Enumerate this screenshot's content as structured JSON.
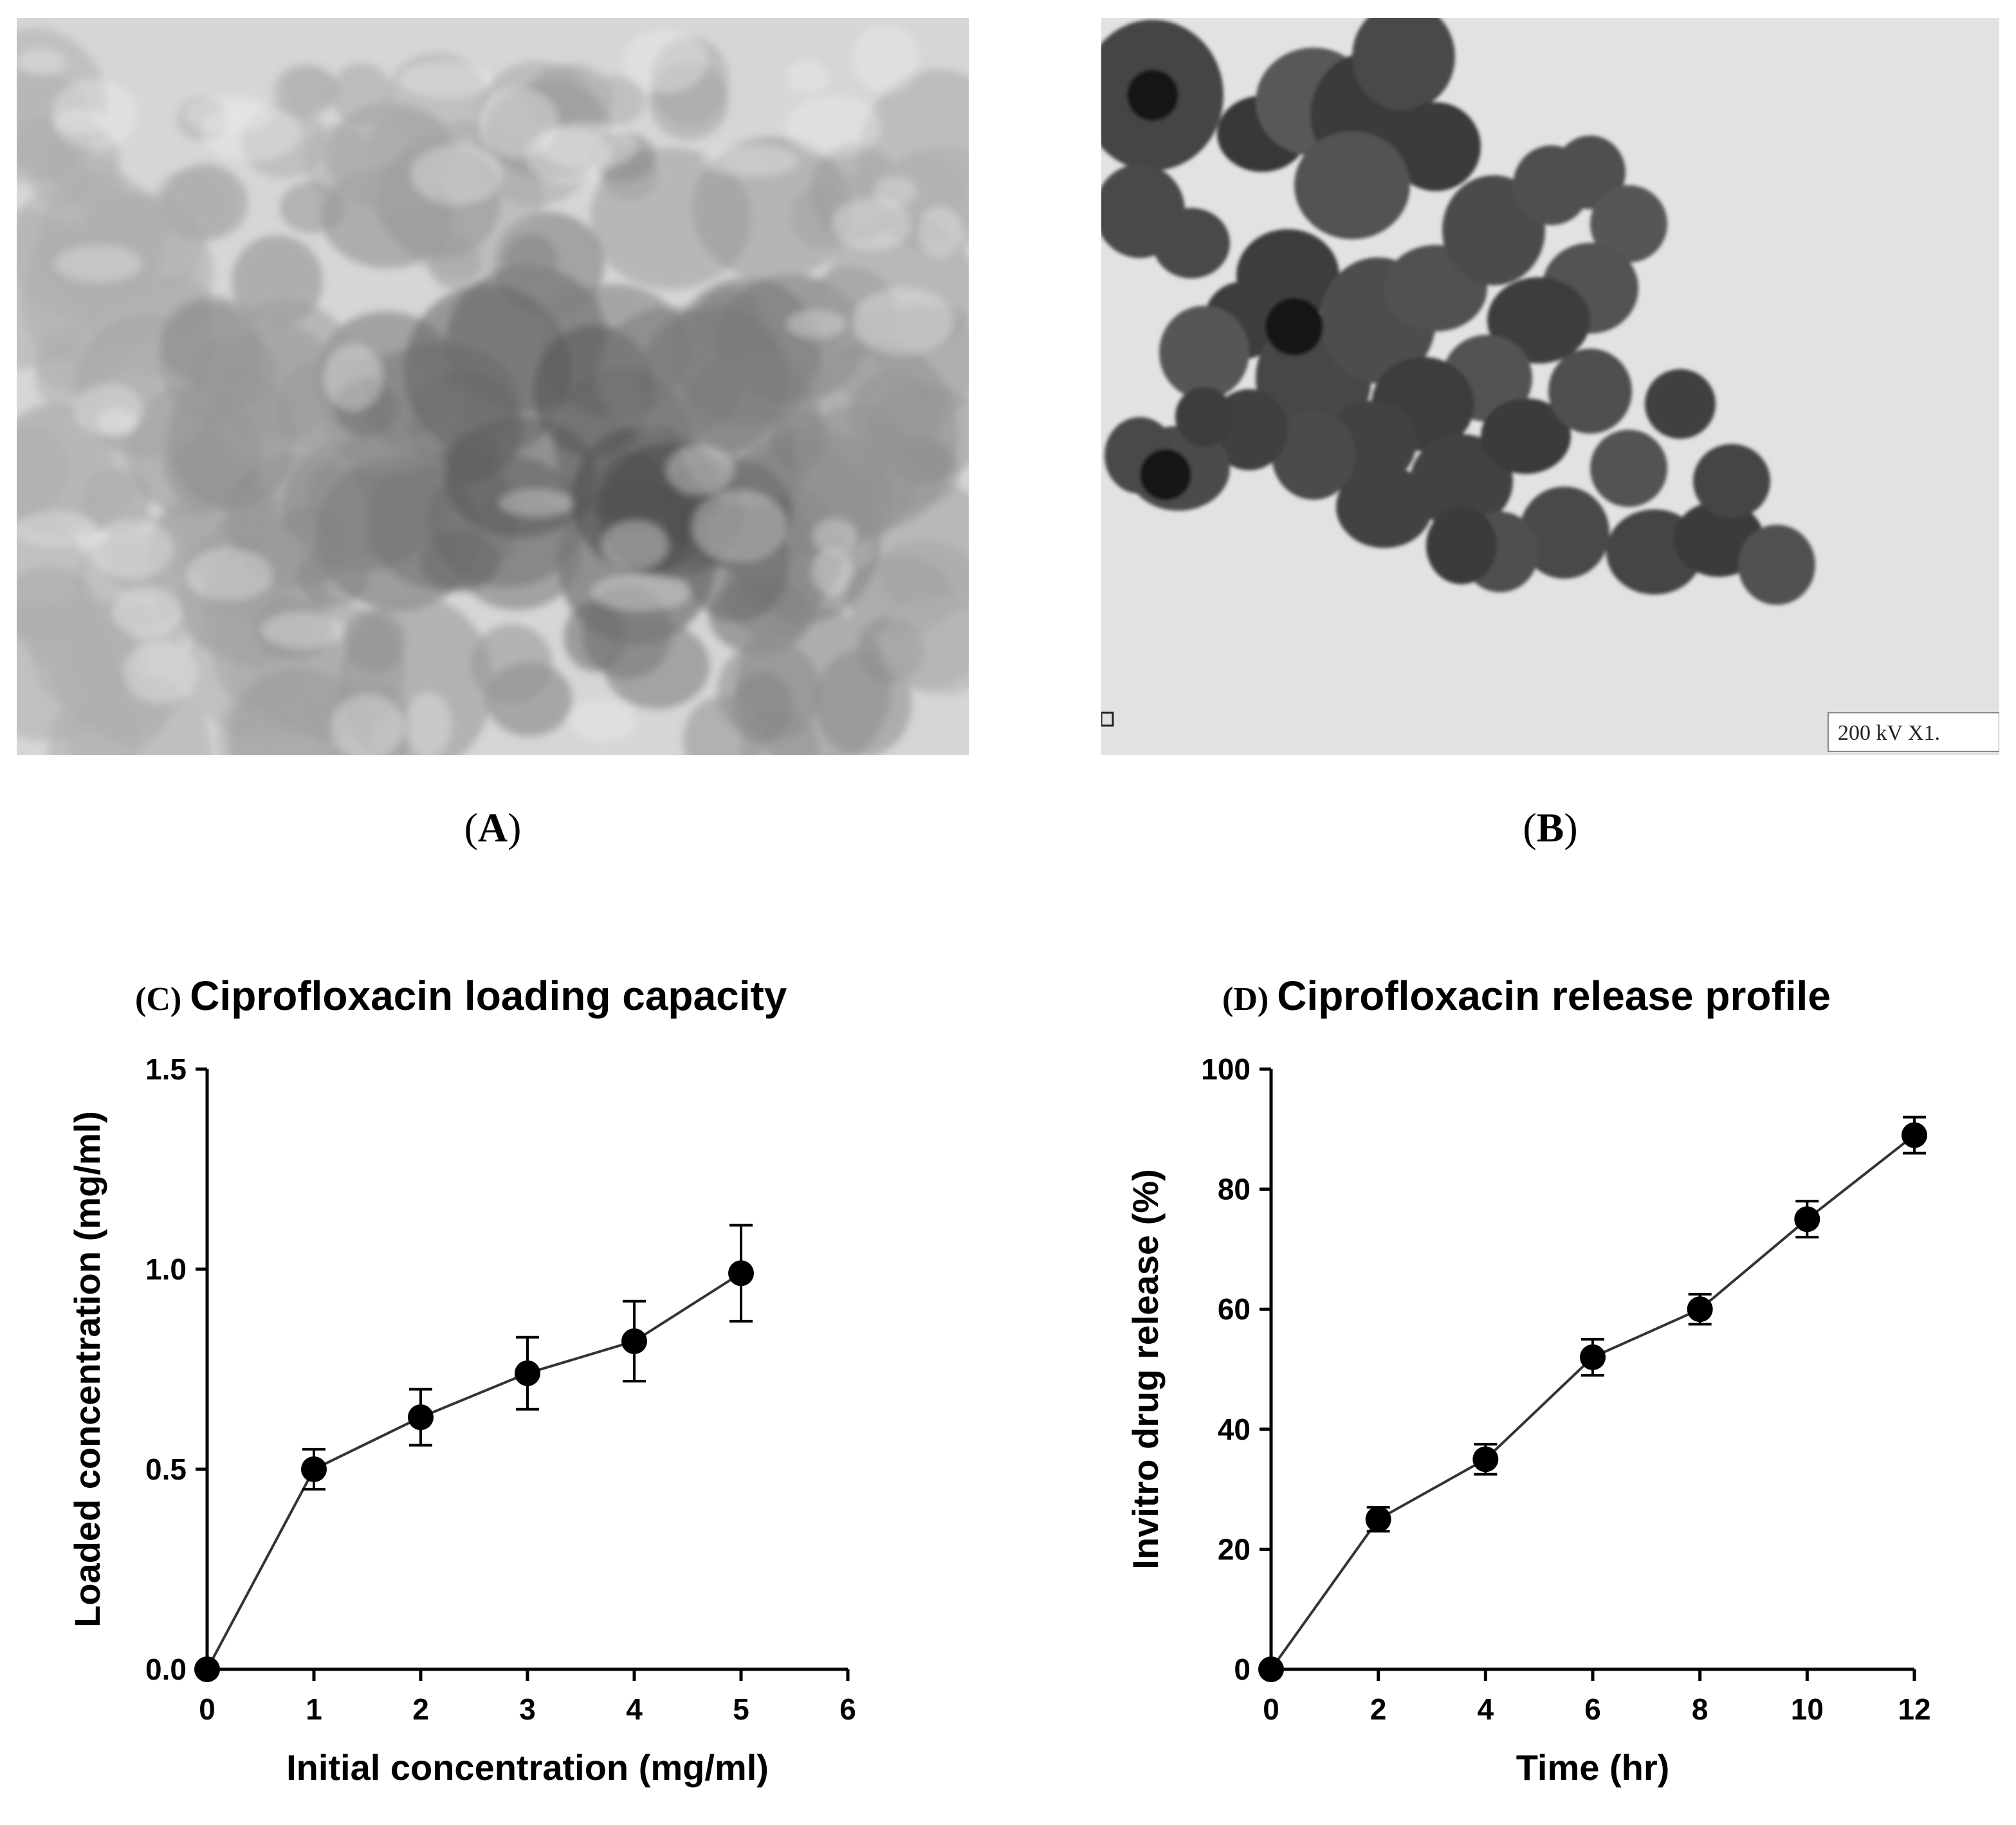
{
  "panels": {
    "a_label": "A",
    "b_label": "B",
    "b_caption": "200 kV  X1."
  },
  "colors": {
    "marker": "#000000",
    "line": "#333333",
    "axis": "#000000",
    "tem_background_a": "#c9c9c9",
    "tem_background_b": "#dcdcdc"
  },
  "chart_data": [
    {
      "type": "line",
      "panel": "C",
      "title_prefix": "(C)",
      "title": "Ciprofloxacin loading capacity",
      "xlabel": "Initial concentration (mg/ml)",
      "ylabel": "Loaded concentration (mg/ml)",
      "xlim": [
        0,
        6
      ],
      "ylim": [
        0,
        1.5
      ],
      "xticks": [
        "0",
        "1",
        "2",
        "3",
        "4",
        "5",
        "6"
      ],
      "yticks": [
        "0.0",
        "0.5",
        "1.0",
        "1.5"
      ],
      "grid": false,
      "x": [
        0,
        1,
        2,
        3,
        4,
        5
      ],
      "y": [
        0.0,
        0.5,
        0.63,
        0.74,
        0.82,
        0.99
      ],
      "error": [
        0.0,
        0.05,
        0.07,
        0.09,
        0.1,
        0.12
      ]
    },
    {
      "type": "line",
      "panel": "D",
      "title_prefix": "(D)",
      "title": "Ciprofloxacin release profile",
      "xlabel": "Time (hr)",
      "ylabel": "Invitro drug release (%)",
      "xlim": [
        0,
        12
      ],
      "ylim": [
        0,
        100
      ],
      "xticks": [
        "0",
        "2",
        "4",
        "6",
        "8",
        "10",
        "12"
      ],
      "yticks": [
        "0",
        "20",
        "40",
        "60",
        "80",
        "100"
      ],
      "grid": false,
      "x": [
        0,
        2,
        4,
        6,
        8,
        10,
        12
      ],
      "y": [
        0,
        25,
        35,
        52,
        60,
        75,
        89
      ],
      "error": [
        0,
        2,
        2.5,
        3,
        2.5,
        3,
        3
      ]
    }
  ]
}
